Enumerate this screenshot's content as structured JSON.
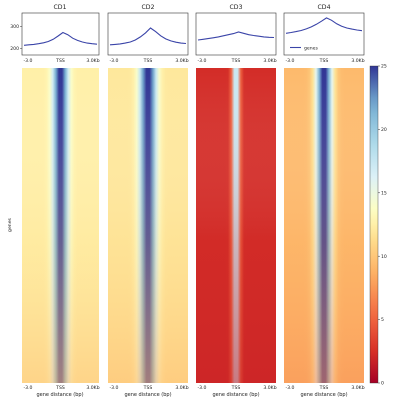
{
  "chart_data": {
    "type": "heatmap",
    "samples": [
      {
        "title": "CD1",
        "profile": [
          214,
          216,
          218,
          221,
          225,
          231,
          241,
          256,
          272,
          262,
          246,
          236,
          229,
          224,
          221,
          219
        ],
        "heat": {
          "flank": 12.5,
          "center": 27,
          "sigma": 0.13
        }
      },
      {
        "title": "CD2",
        "profile": [
          216,
          218,
          220,
          224,
          229,
          238,
          252,
          270,
          292,
          276,
          257,
          243,
          234,
          228,
          224,
          222
        ],
        "heat": {
          "flank": 12.0,
          "center": 27,
          "sigma": 0.14
        }
      },
      {
        "title": "CD3",
        "profile": [
          238,
          241,
          244,
          248,
          252,
          257,
          262,
          267,
          274,
          268,
          262,
          258,
          255,
          252,
          250,
          249
        ],
        "heat": {
          "flank": 2.3,
          "center": 21,
          "sigma": 0.06
        }
      },
      {
        "title": "CD4",
        "profile": [
          268,
          272,
          276,
          281,
          288,
          297,
          309,
          323,
          338,
          327,
          311,
          300,
          292,
          287,
          283,
          280
        ],
        "heat": {
          "flank": 9.2,
          "center": 27,
          "sigma": 0.14
        }
      }
    ],
    "profile_y_ticks": [
      200,
      300
    ],
    "profile_ylim": [
      170,
      360
    ],
    "profile_x_ticks": [
      "-3.0",
      "TSS",
      "3.0Kb"
    ],
    "heatmap_x_ticks": [
      "-3.0",
      "TSS",
      "3.0Kb"
    ],
    "heatmap_xlabel": "gene distance (bp)",
    "heatmap_ylabel": "genes",
    "legend": {
      "label": "genes",
      "color": "#3a44a8"
    },
    "colorbar": {
      "ticks": [
        0,
        5,
        10,
        15,
        20,
        25
      ],
      "min": 0,
      "max": 25,
      "colormap": "RdYlBu"
    }
  }
}
